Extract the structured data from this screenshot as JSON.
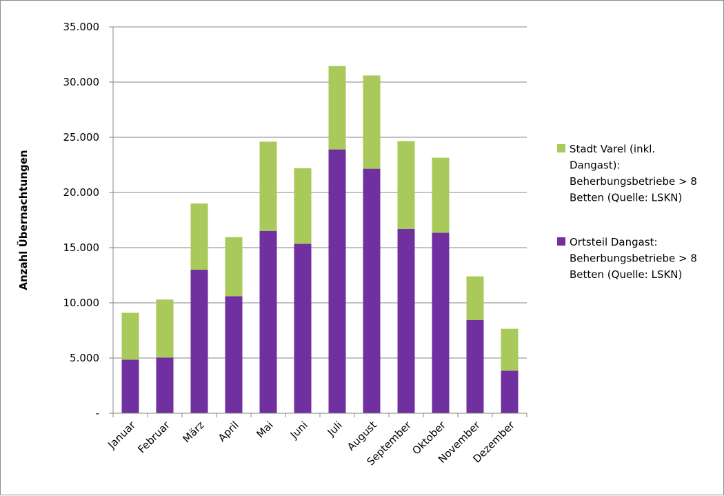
{
  "chart_data": {
    "type": "bar",
    "stacked": true,
    "title": "",
    "xlabel": "",
    "ylabel": "Anzahl Übernachtungen",
    "ylim": [
      0,
      35000
    ],
    "yticks": [
      {
        "value": 0,
        "label": "-"
      },
      {
        "value": 5000,
        "label": "5.000"
      },
      {
        "value": 10000,
        "label": "10.000"
      },
      {
        "value": 15000,
        "label": "15.000"
      },
      {
        "value": 20000,
        "label": "20.000"
      },
      {
        "value": 25000,
        "label": "25.000"
      },
      {
        "value": 30000,
        "label": "30.000"
      },
      {
        "value": 35000,
        "label": "35.000"
      }
    ],
    "grid": true,
    "legend_position": "right",
    "categories": [
      "Januar",
      "Februar",
      "März",
      "April",
      "Mai",
      "Juni",
      "Juli",
      "August",
      "September",
      "Oktober",
      "November",
      "Dezember"
    ],
    "series": [
      {
        "name": "Ortsteil Dangast: Beherbungsbetriebe > 8 Betten (Quelle: LSKN)",
        "legend_lines": [
          "Ortsteil Dangast:",
          "Beherbungsbetriebe > 8",
          "Betten (Quelle: LSKN)"
        ],
        "color": "#7030a0",
        "values": [
          4850,
          5050,
          13000,
          10600,
          16500,
          15350,
          23900,
          22150,
          16700,
          16350,
          8450,
          3850
        ]
      },
      {
        "name": "Stadt Varel (inkl. Dangast): Beherbungsbetriebe > 8 Betten (Quelle: LSKN)",
        "legend_lines": [
          "Stadt Varel (inkl.",
          "Dangast):",
          "Beherbungsbetriebe > 8",
          "Betten (Quelle: LSKN)"
        ],
        "color": "#a9c95a",
        "values": [
          4250,
          5250,
          6000,
          5350,
          8100,
          6850,
          7550,
          8450,
          7950,
          6800,
          3950,
          3800
        ]
      }
    ]
  }
}
